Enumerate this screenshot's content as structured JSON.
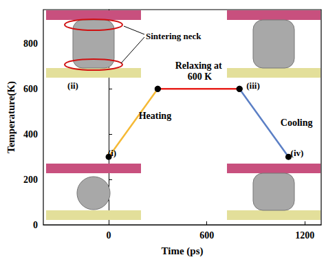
{
  "chart_data": {
    "type": "line",
    "xlabel": "Time (ps)",
    "ylabel": "Temperature(K)",
    "xlim": [
      -400,
      1300
    ],
    "xticks": [
      0,
      600,
      1200
    ],
    "ylim": [
      0,
      950
    ],
    "yticks": [
      0,
      200,
      400,
      600,
      800
    ],
    "grid": false,
    "series": [
      {
        "name": "Heating",
        "color": "#f5b935",
        "marker": "circle",
        "x": [
          0,
          300
        ],
        "values": [
          300,
          600
        ]
      },
      {
        "name": "Relaxing at 600 K",
        "color": "#e8201b",
        "marker": "circle",
        "x": [
          300,
          800
        ],
        "values": [
          600,
          600
        ]
      },
      {
        "name": "Cooling",
        "color": "#5b7fc5",
        "marker": "circle",
        "x": [
          800,
          1100
        ],
        "values": [
          600,
          300
        ]
      }
    ],
    "annotations": [
      "(i)",
      "(ii)",
      "(iii)",
      "(iv)",
      "Sintering neck"
    ]
  }
}
